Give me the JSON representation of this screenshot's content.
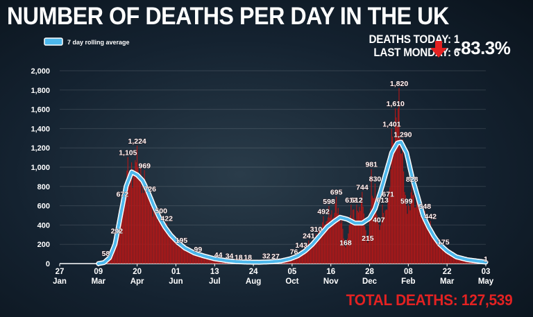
{
  "title": "NUMBER OF DEATHS PER DAY IN THE UK",
  "stats": {
    "today": "DEATHS TODAY: 1",
    "last_monday": "LAST MONDAY: 6",
    "change": "-83.3%"
  },
  "total": "TOTAL DEATHS: 127,539",
  "colors": {
    "bars": "#b01818",
    "line": "#4db8ec",
    "down_arrow": "#e32222"
  },
  "chart_data": {
    "type": "bar",
    "legend": {
      "label": "7 day rolling average",
      "placement": "top-left"
    },
    "ylim": [
      0,
      2000
    ],
    "yticks": [
      0,
      200,
      400,
      600,
      800,
      1000,
      1200,
      1400,
      1600,
      1800,
      2000
    ],
    "ytick_labels": [
      "0",
      "200",
      "400",
      "600",
      "800",
      "1,000",
      "1,200",
      "1,400",
      "1,600",
      "1,800",
      "2,000"
    ],
    "xticks": [
      {
        "day": "27",
        "month": "Jan",
        "index": 0
      },
      {
        "day": "09",
        "month": "Mar",
        "index": 42
      },
      {
        "day": "20",
        "month": "Apr",
        "index": 84
      },
      {
        "day": "01",
        "month": "Jun",
        "index": 126
      },
      {
        "day": "13",
        "month": "Jul",
        "index": 168
      },
      {
        "day": "24",
        "month": "Aug",
        "index": 210
      },
      {
        "day": "05",
        "month": "Oct",
        "index": 252
      },
      {
        "day": "16",
        "month": "Nov",
        "index": 294
      },
      {
        "day": "28",
        "month": "Dec",
        "index": 336
      },
      {
        "day": "08",
        "month": "Feb",
        "index": 378
      },
      {
        "day": "22",
        "month": "Mar",
        "index": 420
      },
      {
        "day": "03",
        "month": "May",
        "index": 462
      }
    ],
    "bar_shape_points": [
      [
        42,
        0
      ],
      [
        46,
        20
      ],
      [
        50,
        58
      ],
      [
        56,
        120
      ],
      [
        62,
        292
      ],
      [
        68,
        672
      ],
      [
        74,
        1105
      ],
      [
        78,
        1050
      ],
      [
        84,
        1224
      ],
      [
        88,
        1000
      ],
      [
        92,
        969
      ],
      [
        98,
        726
      ],
      [
        104,
        600
      ],
      [
        110,
        500
      ],
      [
        116,
        422
      ],
      [
        124,
        300
      ],
      [
        132,
        195
      ],
      [
        140,
        150
      ],
      [
        150,
        99
      ],
      [
        160,
        70
      ],
      [
        172,
        44
      ],
      [
        184,
        34
      ],
      [
        194,
        18
      ],
      [
        204,
        18
      ],
      [
        214,
        14
      ],
      [
        224,
        32
      ],
      [
        234,
        27
      ],
      [
        244,
        50
      ],
      [
        254,
        76
      ],
      [
        262,
        143
      ],
      [
        270,
        241
      ],
      [
        278,
        310
      ],
      [
        286,
        492
      ],
      [
        292,
        598
      ],
      [
        300,
        695
      ],
      [
        306,
        500
      ],
      [
        310,
        168
      ],
      [
        316,
        612
      ],
      [
        322,
        612
      ],
      [
        328,
        744
      ],
      [
        334,
        215
      ],
      [
        338,
        981
      ],
      [
        342,
        830
      ],
      [
        346,
        407
      ],
      [
        350,
        613
      ],
      [
        356,
        671
      ],
      [
        360,
        1401
      ],
      [
        364,
        1610
      ],
      [
        368,
        1820
      ],
      [
        372,
        1290
      ],
      [
        376,
        599
      ],
      [
        382,
        828
      ],
      [
        388,
        700
      ],
      [
        396,
        548
      ],
      [
        402,
        442
      ],
      [
        408,
        300
      ],
      [
        416,
        175
      ],
      [
        428,
        90
      ],
      [
        440,
        40
      ],
      [
        452,
        15
      ],
      [
        462,
        1
      ]
    ],
    "rolling_average_points": [
      [
        42,
        0
      ],
      [
        48,
        10
      ],
      [
        54,
        60
      ],
      [
        60,
        200
      ],
      [
        66,
        500
      ],
      [
        72,
        800
      ],
      [
        78,
        950
      ],
      [
        84,
        920
      ],
      [
        90,
        860
      ],
      [
        96,
        740
      ],
      [
        102,
        600
      ],
      [
        108,
        480
      ],
      [
        114,
        380
      ],
      [
        120,
        300
      ],
      [
        128,
        220
      ],
      [
        136,
        160
      ],
      [
        146,
        110
      ],
      [
        156,
        80
      ],
      [
        168,
        50
      ],
      [
        180,
        32
      ],
      [
        192,
        20
      ],
      [
        204,
        15
      ],
      [
        216,
        14
      ],
      [
        228,
        18
      ],
      [
        240,
        28
      ],
      [
        250,
        50
      ],
      [
        258,
        80
      ],
      [
        266,
        130
      ],
      [
        274,
        200
      ],
      [
        282,
        290
      ],
      [
        290,
        380
      ],
      [
        298,
        440
      ],
      [
        304,
        480
      ],
      [
        312,
        460
      ],
      [
        320,
        420
      ],
      [
        328,
        420
      ],
      [
        336,
        470
      ],
      [
        342,
        570
      ],
      [
        348,
        750
      ],
      [
        354,
        950
      ],
      [
        360,
        1150
      ],
      [
        366,
        1250
      ],
      [
        370,
        1260
      ],
      [
        376,
        1150
      ],
      [
        382,
        900
      ],
      [
        388,
        700
      ],
      [
        394,
        500
      ],
      [
        400,
        380
      ],
      [
        406,
        280
      ],
      [
        412,
        200
      ],
      [
        420,
        130
      ],
      [
        430,
        70
      ],
      [
        442,
        40
      ],
      [
        454,
        25
      ],
      [
        462,
        15
      ]
    ],
    "annotations": [
      {
        "x": 50,
        "y": 58,
        "label": "58"
      },
      {
        "x": 62,
        "y": 292,
        "label": "292"
      },
      {
        "x": 68,
        "y": 672,
        "label": "672"
      },
      {
        "x": 74,
        "y": 1105,
        "label": "1,105"
      },
      {
        "x": 84,
        "y": 1224,
        "label": "1,224"
      },
      {
        "x": 92,
        "y": 969,
        "label": "969"
      },
      {
        "x": 98,
        "y": 726,
        "label": "726"
      },
      {
        "x": 110,
        "y": 500,
        "label": "500"
      },
      {
        "x": 116,
        "y": 422,
        "label": "422"
      },
      {
        "x": 132,
        "y": 195,
        "label": "195"
      },
      {
        "x": 150,
        "y": 99,
        "label": "99"
      },
      {
        "x": 172,
        "y": 44,
        "label": "44"
      },
      {
        "x": 184,
        "y": 34,
        "label": "34"
      },
      {
        "x": 194,
        "y": 18,
        "label": "18"
      },
      {
        "x": 204,
        "y": 18,
        "label": "18"
      },
      {
        "x": 224,
        "y": 32,
        "label": "32"
      },
      {
        "x": 234,
        "y": 27,
        "label": "27"
      },
      {
        "x": 254,
        "y": 76,
        "label": "76"
      },
      {
        "x": 262,
        "y": 143,
        "label": "143"
      },
      {
        "x": 270,
        "y": 241,
        "label": "241"
      },
      {
        "x": 278,
        "y": 310,
        "label": "310"
      },
      {
        "x": 286,
        "y": 492,
        "label": "492"
      },
      {
        "x": 292,
        "y": 598,
        "label": "598"
      },
      {
        "x": 300,
        "y": 695,
        "label": "695"
      },
      {
        "x": 310,
        "y": 168,
        "label": "168"
      },
      {
        "x": 316,
        "y": 612,
        "label": "612"
      },
      {
        "x": 322,
        "y": 612,
        "label": "612"
      },
      {
        "x": 328,
        "y": 744,
        "label": "744"
      },
      {
        "x": 334,
        "y": 215,
        "label": "215"
      },
      {
        "x": 338,
        "y": 981,
        "label": "981"
      },
      {
        "x": 342,
        "y": 830,
        "label": "830"
      },
      {
        "x": 346,
        "y": 407,
        "label": "407"
      },
      {
        "x": 350,
        "y": 613,
        "label": "613"
      },
      {
        "x": 356,
        "y": 671,
        "label": "671"
      },
      {
        "x": 360,
        "y": 1401,
        "label": "1,401"
      },
      {
        "x": 364,
        "y": 1610,
        "label": "1,610"
      },
      {
        "x": 368,
        "y": 1820,
        "label": "1,820"
      },
      {
        "x": 372,
        "y": 1290,
        "label": "1,290"
      },
      {
        "x": 376,
        "y": 599,
        "label": "599"
      },
      {
        "x": 382,
        "y": 828,
        "label": "828"
      },
      {
        "x": 396,
        "y": 548,
        "label": "548"
      },
      {
        "x": 402,
        "y": 442,
        "label": "442"
      },
      {
        "x": 416,
        "y": 175,
        "label": "175"
      },
      {
        "x": 462,
        "y": 1,
        "label": "1"
      }
    ]
  }
}
